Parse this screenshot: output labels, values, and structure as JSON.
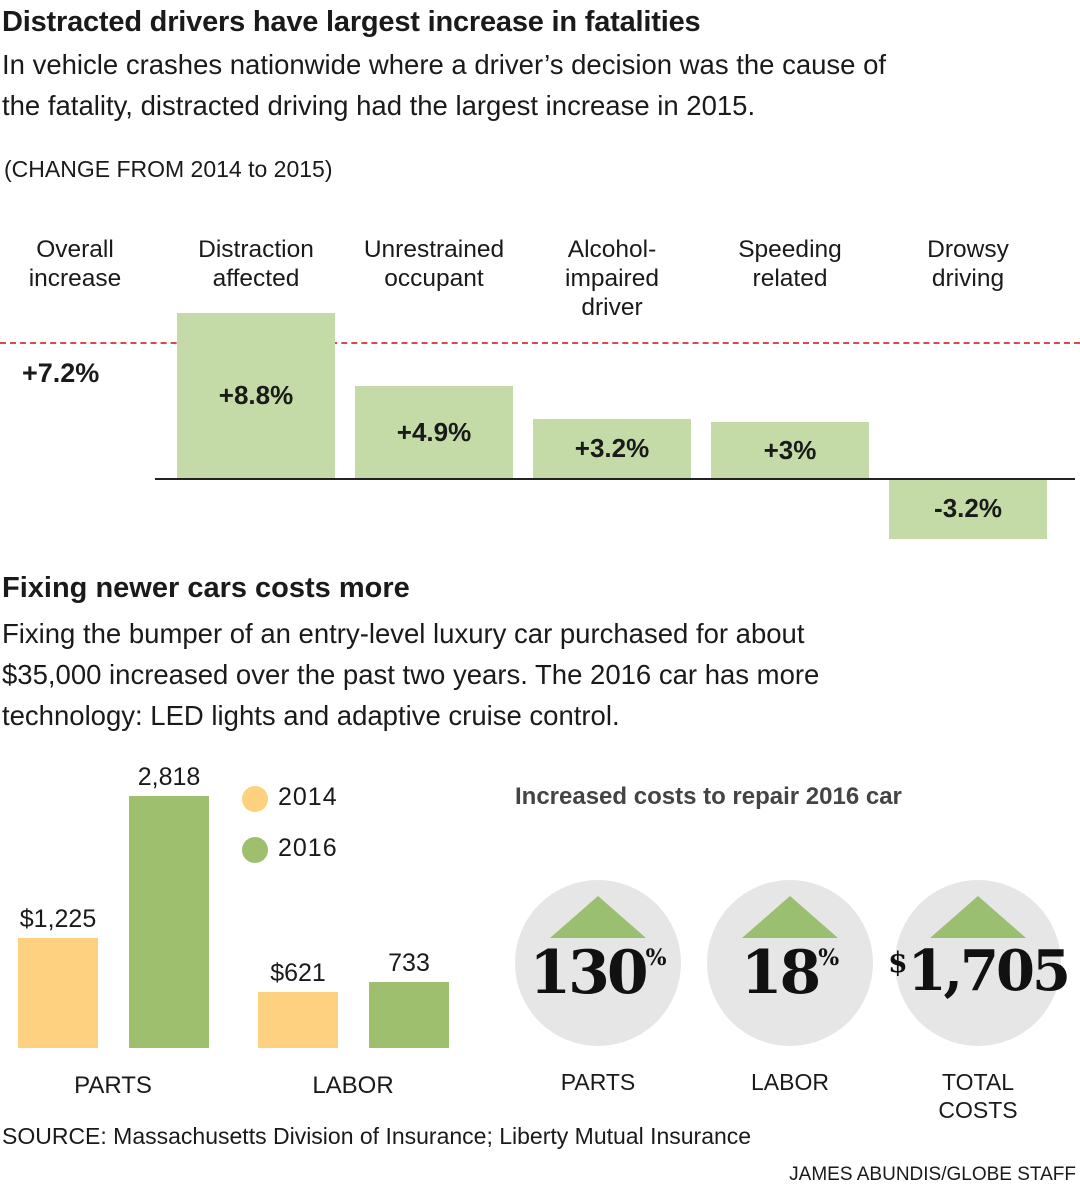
{
  "top_chart": {
    "title": "Distracted drivers have largest increase in fatalities",
    "subtitle_lines": [
      "In vehicle crashes nationwide where a driver’s decision was the cause of",
      "the fatality, distracted driving had the largest increase in 2015."
    ],
    "note": "(CHANGE FROM 2014 to 2015)",
    "overall_label_lines": [
      "Overall",
      "increase"
    ],
    "overall_value": "+7.2%",
    "categories": [
      {
        "lines": [
          "Distraction",
          "affected"
        ],
        "label": "+8.8%"
      },
      {
        "lines": [
          "Unrestrained",
          "occupant"
        ],
        "label": "+4.9%"
      },
      {
        "lines": [
          "Alcohol-",
          "impaired",
          "driver"
        ],
        "label": "+3.2%"
      },
      {
        "lines": [
          "Speeding",
          "related"
        ],
        "label": "+3%"
      },
      {
        "lines": [
          "Drowsy",
          "driving"
        ],
        "label": "-3.2%"
      }
    ],
    "bar_color": "#c5dba7",
    "reference_line_color": "#e0474c"
  },
  "bottom_chart": {
    "title": "Fixing newer cars costs more",
    "subtitle_lines": [
      "Fixing the bumper of an entry-level luxury car purchased for about",
      "$35,000 increased over the past two years. The 2016 car has more",
      "technology: LED lights and adaptive cruise control."
    ],
    "legend": [
      {
        "name": "2014",
        "color": "#fdd17f"
      },
      {
        "name": "2016",
        "color": "#9dbf6e"
      }
    ],
    "groups": [
      {
        "name": "PARTS",
        "labels": [
          "$1,225",
          "2,818"
        ]
      },
      {
        "name": "LABOR",
        "labels": [
          "$621",
          "733"
        ]
      }
    ]
  },
  "increased_costs": {
    "title": "Increased costs to repair 2016 car",
    "items": [
      {
        "prefix": "",
        "value": "130",
        "suffix": "%",
        "label_lines": [
          "PARTS"
        ]
      },
      {
        "prefix": "",
        "value": "18",
        "suffix": "%",
        "label_lines": [
          "LABOR"
        ]
      },
      {
        "prefix": "$",
        "value": "1,705",
        "suffix": "",
        "label_lines": [
          "TOTAL",
          "COSTS"
        ]
      }
    ],
    "circle_color": "#e6e6e6",
    "arrow_color": "#9bbf70"
  },
  "source": "SOURCE: Massachusetts Division of Insurance; Liberty Mutual Insurance",
  "credit": "JAMES ABUNDIS/GLOBE STAFF",
  "chart_data": [
    {
      "type": "bar",
      "title": "Distracted drivers have largest increase in fatalities",
      "categories": [
        "Distraction affected",
        "Unrestrained occupant",
        "Alcohol-impaired driver",
        "Speeding related",
        "Drowsy driving"
      ],
      "values": [
        8.8,
        4.9,
        3.2,
        3,
        -3.2
      ],
      "reference_line": {
        "label": "Overall increase",
        "value": 7.2
      },
      "unit": "%",
      "ylim": [
        -3.2,
        8.8
      ]
    },
    {
      "type": "bar",
      "title": "Fixing newer cars costs more",
      "categories": [
        "PARTS",
        "LABOR"
      ],
      "series": [
        {
          "name": "2014",
          "values": [
            1225,
            621
          ]
        },
        {
          "name": "2016",
          "values": [
            2818,
            733
          ]
        }
      ],
      "ylim": [
        0,
        2818
      ],
      "legend": "top-right"
    },
    {
      "type": "table",
      "title": "Increased costs to repair 2016 car",
      "categories": [
        "PARTS",
        "LABOR",
        "TOTAL COSTS"
      ],
      "values": [
        130,
        18,
        1705
      ],
      "units": [
        "%",
        "%",
        "$"
      ]
    }
  ]
}
